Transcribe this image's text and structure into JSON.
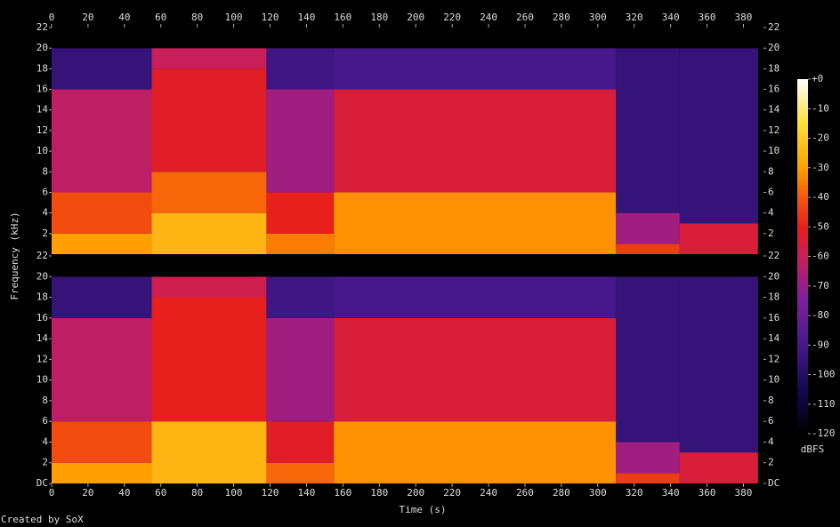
{
  "chart_data": {
    "type": "spectrogram",
    "xlabel": "Time (s)",
    "ylabel": "Frequency (kHz)",
    "colorbar_label": "dBFS",
    "credit": "Created by SoX",
    "xlim": [
      0,
      391
    ],
    "xticks": [
      0,
      20,
      40,
      60,
      80,
      100,
      120,
      140,
      160,
      180,
      200,
      220,
      240,
      260,
      280,
      300,
      320,
      340,
      360,
      380
    ],
    "ylim": [
      0,
      22
    ],
    "yticks": [
      {
        "value": 0,
        "label": "DC"
      },
      2,
      4,
      6,
      8,
      10,
      12,
      14,
      16,
      18,
      20,
      22
    ],
    "clim": [
      -120,
      0
    ],
    "cticks": [
      {
        "value": 0,
        "label": "+0"
      },
      -10,
      -20,
      -30,
      -40,
      -50,
      -60,
      -70,
      -80,
      -90,
      -100,
      -110,
      -120
    ],
    "channels": [
      {
        "segments": [
          {
            "start": 0,
            "end": 55,
            "bands": [
              {
                "lo": 0,
                "hi": 2,
                "db": -30
              },
              {
                "lo": 2,
                "hi": 6,
                "db": -42
              },
              {
                "lo": 6,
                "hi": 16,
                "db": -62
              },
              {
                "lo": 16,
                "hi": 20,
                "db": -95
              },
              {
                "lo": 20,
                "hi": 22,
                "db": -120
              }
            ]
          },
          {
            "start": 55,
            "end": 118,
            "bands": [
              {
                "lo": 0,
                "hi": 4,
                "db": -25
              },
              {
                "lo": 4,
                "hi": 8,
                "db": -38
              },
              {
                "lo": 8,
                "hi": 18,
                "db": -52
              },
              {
                "lo": 18,
                "hi": 20,
                "db": -60
              },
              {
                "lo": 20,
                "hi": 22,
                "db": -120
              }
            ]
          },
          {
            "start": 118,
            "end": 155,
            "bands": [
              {
                "lo": 0,
                "hi": 2,
                "db": -35
              },
              {
                "lo": 2,
                "hi": 6,
                "db": -50
              },
              {
                "lo": 6,
                "hi": 16,
                "db": -68
              },
              {
                "lo": 16,
                "hi": 20,
                "db": -92
              },
              {
                "lo": 20,
                "hi": 22,
                "db": -120
              }
            ]
          },
          {
            "start": 155,
            "end": 310,
            "bands": [
              {
                "lo": 0,
                "hi": 6,
                "db": -32
              },
              {
                "lo": 6,
                "hi": 16,
                "db": -55
              },
              {
                "lo": 16,
                "hi": 20,
                "db": -90
              },
              {
                "lo": 20,
                "hi": 22,
                "db": -120
              }
            ]
          },
          {
            "start": 310,
            "end": 345,
            "bands": [
              {
                "lo": 0,
                "hi": 1,
                "db": -45
              },
              {
                "lo": 1,
                "hi": 4,
                "db": -68
              },
              {
                "lo": 4,
                "hi": 20,
                "db": -95
              },
              {
                "lo": 20,
                "hi": 22,
                "db": -120
              }
            ]
          },
          {
            "start": 345,
            "end": 388,
            "bands": [
              {
                "lo": 0,
                "hi": 3,
                "db": -55
              },
              {
                "lo": 3,
                "hi": 20,
                "db": -95
              },
              {
                "lo": 20,
                "hi": 22,
                "db": -120
              }
            ]
          }
        ]
      },
      {
        "segments": [
          {
            "start": 0,
            "end": 55,
            "bands": [
              {
                "lo": 0,
                "hi": 2,
                "db": -30
              },
              {
                "lo": 2,
                "hi": 6,
                "db": -42
              },
              {
                "lo": 6,
                "hi": 16,
                "db": -62
              },
              {
                "lo": 16,
                "hi": 20,
                "db": -95
              },
              {
                "lo": 20,
                "hi": 22,
                "db": -120
              }
            ]
          },
          {
            "start": 55,
            "end": 118,
            "bands": [
              {
                "lo": 0,
                "hi": 6,
                "db": -25
              },
              {
                "lo": 6,
                "hi": 18,
                "db": -50
              },
              {
                "lo": 18,
                "hi": 20,
                "db": -58
              },
              {
                "lo": 20,
                "hi": 22,
                "db": -120
              }
            ]
          },
          {
            "start": 118,
            "end": 155,
            "bands": [
              {
                "lo": 0,
                "hi": 2,
                "db": -38
              },
              {
                "lo": 2,
                "hi": 6,
                "db": -52
              },
              {
                "lo": 6,
                "hi": 16,
                "db": -68
              },
              {
                "lo": 16,
                "hi": 20,
                "db": -92
              },
              {
                "lo": 20,
                "hi": 22,
                "db": -120
              }
            ]
          },
          {
            "start": 155,
            "end": 310,
            "bands": [
              {
                "lo": 0,
                "hi": 6,
                "db": -32
              },
              {
                "lo": 6,
                "hi": 16,
                "db": -55
              },
              {
                "lo": 16,
                "hi": 20,
                "db": -90
              },
              {
                "lo": 20,
                "hi": 22,
                "db": -120
              }
            ]
          },
          {
            "start": 310,
            "end": 345,
            "bands": [
              {
                "lo": 0,
                "hi": 1,
                "db": -45
              },
              {
                "lo": 1,
                "hi": 4,
                "db": -68
              },
              {
                "lo": 4,
                "hi": 20,
                "db": -95
              },
              {
                "lo": 20,
                "hi": 22,
                "db": -120
              }
            ]
          },
          {
            "start": 345,
            "end": 388,
            "bands": [
              {
                "lo": 0,
                "hi": 3,
                "db": -55
              },
              {
                "lo": 3,
                "hi": 20,
                "db": -95
              },
              {
                "lo": 20,
                "hi": 22,
                "db": -120
              }
            ]
          }
        ]
      }
    ]
  }
}
